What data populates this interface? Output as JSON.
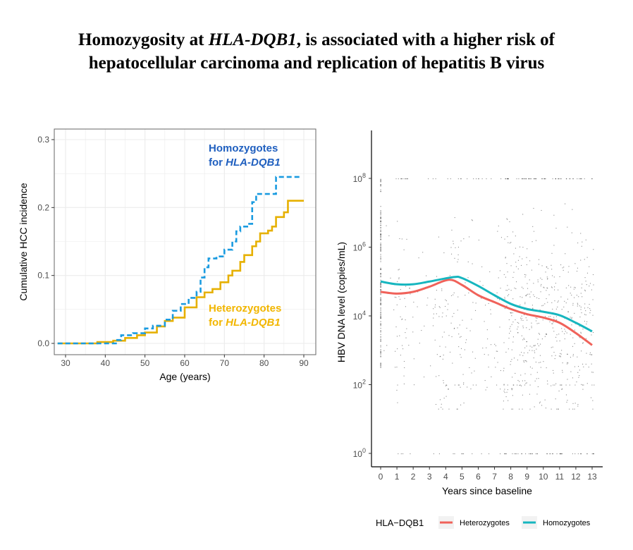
{
  "title": {
    "line1_pre": "Homozygosity at ",
    "line1_italic": "HLA-DQB1",
    "line1_post": ", is associated with a higher risk of",
    "line2": "hepatocellular carcinoma and replication of hepatitis B virus"
  },
  "chart_data": [
    {
      "type": "line",
      "step": true,
      "xlabel": "Age (years)",
      "ylabel": "Cumulative HCC incidence",
      "xlim": [
        27,
        95
      ],
      "ylim": [
        -0.012,
        0.31
      ],
      "xticks": [
        30,
        40,
        50,
        60,
        70,
        80,
        90
      ],
      "yticks": [
        0.0,
        0.1,
        0.2,
        0.3
      ],
      "ytick_labels": [
        "0.0",
        "0.1",
        "0.2",
        "0.3"
      ],
      "grid": true,
      "annotations": [
        {
          "line1": "Homozygotes",
          "line2_pre": "for ",
          "line2_italic": "HLA-DQB1",
          "color": "#1f5fbf"
        },
        {
          "line1": "Heterozygotes",
          "line2_pre": "for ",
          "line2_italic": "HLA-DQB1",
          "color": "#f2b600"
        }
      ],
      "series": [
        {
          "color": "#1a9be0",
          "style": "dashed",
          "x": [
            28,
            41,
            43,
            44,
            47,
            50,
            52,
            55,
            57,
            59,
            61,
            63,
            64,
            65,
            66,
            68,
            70,
            72,
            73,
            74,
            76,
            77,
            78,
            83,
            89
          ],
          "y": [
            0,
            0,
            0.005,
            0.012,
            0.015,
            0.022,
            0.026,
            0.035,
            0.048,
            0.058,
            0.067,
            0.076,
            0.097,
            0.112,
            0.125,
            0.128,
            0.138,
            0.15,
            0.165,
            0.172,
            0.176,
            0.208,
            0.22,
            0.245,
            0.245
          ]
        },
        {
          "color": "#e6b000",
          "style": "solid",
          "x": [
            28,
            36,
            38,
            42,
            45,
            48,
            50,
            53,
            55,
            57,
            60,
            63,
            65,
            67,
            69,
            71,
            72,
            74,
            75,
            77,
            78,
            79,
            81,
            82,
            83,
            85,
            86,
            90
          ],
          "y": [
            0,
            0,
            0.002,
            0.004,
            0.008,
            0.012,
            0.016,
            0.025,
            0.033,
            0.038,
            0.053,
            0.068,
            0.075,
            0.08,
            0.09,
            0.1,
            0.107,
            0.12,
            0.13,
            0.143,
            0.15,
            0.162,
            0.166,
            0.172,
            0.186,
            0.193,
            0.21,
            0.21
          ]
        }
      ]
    },
    {
      "type": "scatter",
      "xlabel": "Years since baseline",
      "ylabel": "HBV DNA level (copies/mL)",
      "xlim": [
        -0.5,
        13.5
      ],
      "ylim_log10": [
        -0.5,
        10.5
      ],
      "log_y": true,
      "xticks": [
        0,
        1,
        2,
        3,
        4,
        5,
        6,
        7,
        8,
        9,
        10,
        11,
        12,
        13
      ],
      "yticks": [
        {
          "base": "10",
          "exp": "0"
        },
        {
          "base": "10",
          "exp": "2"
        },
        {
          "base": "10",
          "exp": "4"
        },
        {
          "base": "10",
          "exp": "6"
        },
        {
          "base": "10",
          "exp": "8"
        }
      ],
      "legend": {
        "title": "HLA−DQB1",
        "position": "bottom"
      },
      "grid": false,
      "series": [
        {
          "name": "Heterozygotes",
          "color": "#f0625a",
          "type": "smooth",
          "x": [
            0,
            1,
            2,
            3,
            4.2,
            5,
            6,
            7,
            8,
            9,
            10,
            11,
            12,
            13
          ],
          "log10_y": [
            4.7,
            4.65,
            4.7,
            4.85,
            5.05,
            4.9,
            4.6,
            4.4,
            4.2,
            4.05,
            3.95,
            3.8,
            3.5,
            3.15
          ]
        },
        {
          "name": "Homozygotes",
          "color": "#17b6bf",
          "type": "smooth",
          "x": [
            0,
            1,
            2,
            3,
            4.5,
            5,
            6,
            7,
            8,
            9,
            10,
            11,
            12,
            13
          ],
          "log10_y": [
            5.0,
            4.92,
            4.92,
            5.0,
            5.13,
            5.1,
            4.87,
            4.6,
            4.35,
            4.2,
            4.12,
            4.02,
            3.8,
            3.55
          ]
        }
      ]
    }
  ]
}
